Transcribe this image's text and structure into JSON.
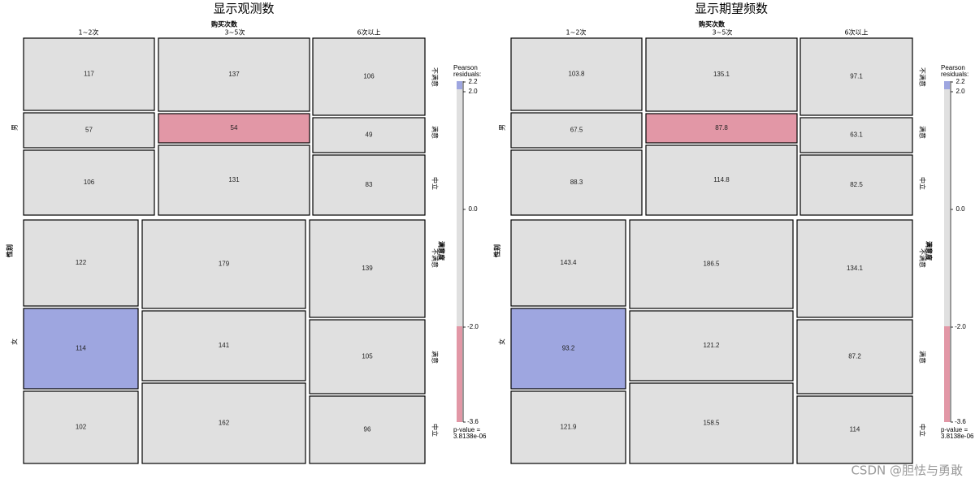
{
  "chart_data": [
    {
      "type": "mosaic",
      "title": "显示观测数",
      "row_var": "性别",
      "col_var": "满意度",
      "cond_var": "购买次数",
      "purchase_levels": [
        "1~2次",
        "3~5次",
        "6次以上"
      ],
      "groups": [
        {
          "gender": "男",
          "satisfaction": [
            "不满意",
            "满意",
            "中立"
          ],
          "values": [
            [
              117,
              137,
              106
            ],
            [
              57,
              54,
              49
            ],
            [
              106,
              131,
              83
            ]
          ]
        },
        {
          "gender": "女",
          "satisfaction": [
            "不满意",
            "满意",
            "中立"
          ],
          "values": [
            [
              122,
              179,
              139
            ],
            [
              114,
              141,
              105
            ],
            [
              102,
              162,
              96
            ]
          ]
        }
      ]
    },
    {
      "type": "mosaic",
      "title": "显示期望频数",
      "row_var": "性别",
      "col_var": "满意度",
      "cond_var": "购买次数",
      "purchase_levels": [
        "1~2次",
        "3~5次",
        "6次以上"
      ],
      "groups": [
        {
          "gender": "男",
          "satisfaction": [
            "不满意",
            "满意",
            "中立"
          ],
          "values": [
            [
              "103.8",
              "135.1",
              "97.1"
            ],
            [
              "67.5",
              "87.8",
              "63.1"
            ],
            [
              "88.3",
              "114.8",
              "82.5"
            ]
          ]
        },
        {
          "gender": "女",
          "satisfaction": [
            "不满意",
            "满意",
            "中立"
          ],
          "values": [
            [
              "143.4",
              "186.5",
              "134.1"
            ],
            [
              "93.2",
              "121.2",
              "87.2"
            ],
            [
              "121.9",
              "158.5",
              "114"
            ]
          ]
        }
      ]
    }
  ],
  "shading": {
    "base": "#e0e0e0",
    "positive": "#9ea6e0",
    "negative": "#e297a6",
    "highlight_positive": {
      "gender": "女",
      "satisfaction": "满意",
      "purchase": "1~2次"
    },
    "highlight_negative": {
      "gender": "男",
      "satisfaction": "满意",
      "purchase": "3~5次"
    }
  },
  "legend": {
    "title_line1": "Pearson",
    "title_line2": "residuals:",
    "ticks": [
      "2.2",
      "2.0",
      "0.0",
      "-2.0",
      "-3.6"
    ],
    "pvalue_line1": "p-value =",
    "pvalue_line2": "3.8138e-06"
  },
  "watermark": "CSDN @胆怯与勇敢"
}
